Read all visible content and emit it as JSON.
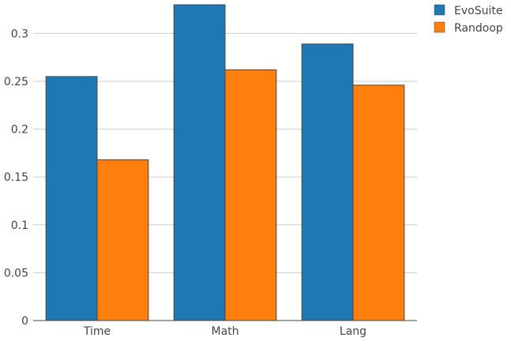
{
  "chart_data": {
    "type": "bar",
    "title": "",
    "xlabel": "",
    "ylabel": "",
    "categories": [
      "Time",
      "Math",
      "Lang"
    ],
    "series": [
      {
        "name": "EvoSuite",
        "color": "#1f77b4",
        "values": [
          0.255,
          0.33,
          0.289
        ]
      },
      {
        "name": "Randoop",
        "color": "#ff7f0e",
        "values": [
          0.168,
          0.262,
          0.246
        ]
      }
    ],
    "ylim": [
      0,
      0.335
    ],
    "yticks": [
      0,
      0.05,
      0.1,
      0.15,
      0.2,
      0.25,
      0.3
    ],
    "ytick_labels": [
      "0",
      "0.05",
      "0.1",
      "0.15",
      "0.2",
      "0.25",
      "0.3"
    ],
    "grid": true,
    "legend_position": "top-right"
  }
}
